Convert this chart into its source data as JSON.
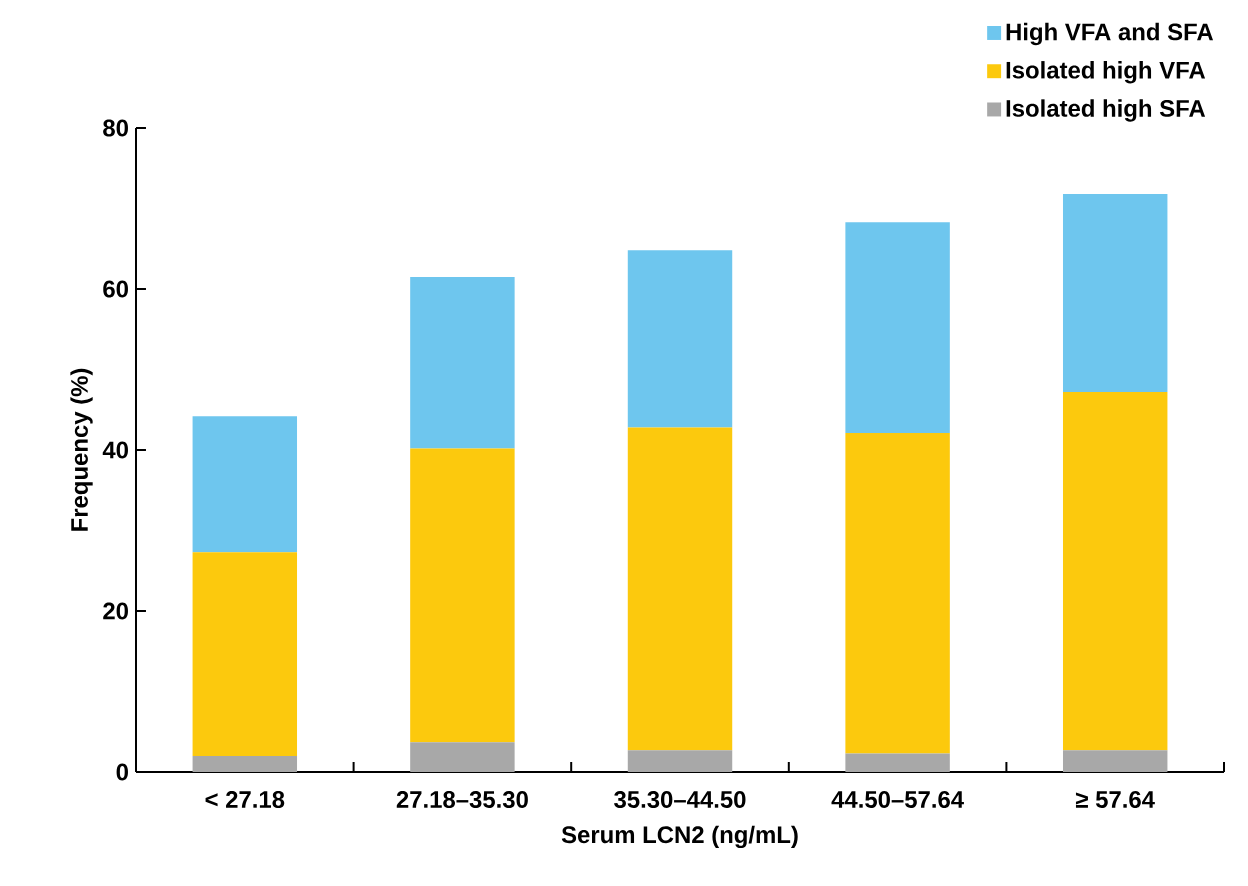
{
  "chart_data": {
    "type": "bar",
    "stacked": true,
    "xlabel": "Serum LCN2 (ng/mL)",
    "ylabel": "Frequency (%)",
    "categories": [
      "< 27.18",
      "27.18–35.30",
      "35.30–44.50",
      "44.50–57.64",
      "≥ 57.64"
    ],
    "series": [
      {
        "name": "Isolated high SFA",
        "color": "#a8a8a8",
        "values": [
          2.0,
          3.7,
          2.7,
          2.3,
          2.7
        ]
      },
      {
        "name": "Isolated high VFA",
        "color": "#fcc90d",
        "values": [
          25.3,
          36.5,
          40.1,
          39.8,
          44.5
        ]
      },
      {
        "name": "High VFA and SFA",
        "color": "#6ec6ee",
        "values": [
          16.9,
          21.3,
          22.0,
          26.2,
          24.6
        ]
      }
    ],
    "ylim": [
      0,
      80
    ],
    "yticks": [
      0,
      20,
      40,
      60,
      80
    ],
    "legend": "top right",
    "grid": false
  }
}
